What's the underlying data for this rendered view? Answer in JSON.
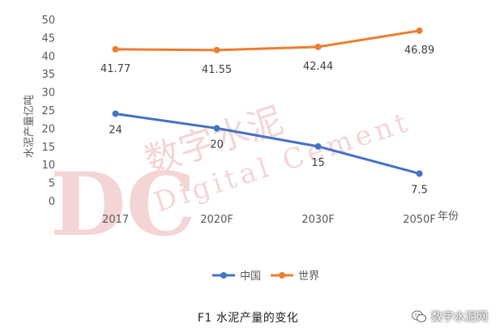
{
  "chart_data": {
    "type": "line",
    "categories": [
      "2017",
      "2020F",
      "2030F",
      "2050F"
    ],
    "series": [
      {
        "name": "中国",
        "values": [
          24,
          20,
          15,
          7.5
        ],
        "color": "#4472C4",
        "labels": [
          "24",
          "20",
          "15",
          "7.5"
        ]
      },
      {
        "name": "世界",
        "values": [
          41.77,
          41.55,
          42.44,
          46.89
        ],
        "color": "#ED7D31",
        "labels": [
          "41.77",
          "41.55",
          "42.44",
          "46.89"
        ]
      }
    ],
    "ylabel": "水泥产量亿吨",
    "xlabel": "年份",
    "ylim": [
      0,
      50
    ],
    "yticks": [
      "0",
      "5",
      "10",
      "15",
      "20",
      "25",
      "30",
      "35",
      "40",
      "45",
      "50"
    ],
    "grid": false,
    "legend": "bottom"
  },
  "caption": "F1  水泥产量的变化",
  "watermark": {
    "brand_initials": "DC",
    "cn": "数字水泥",
    "en": "Digital Cement"
  },
  "brand": {
    "icon": "wechat-icon",
    "name": "数字水泥网"
  }
}
